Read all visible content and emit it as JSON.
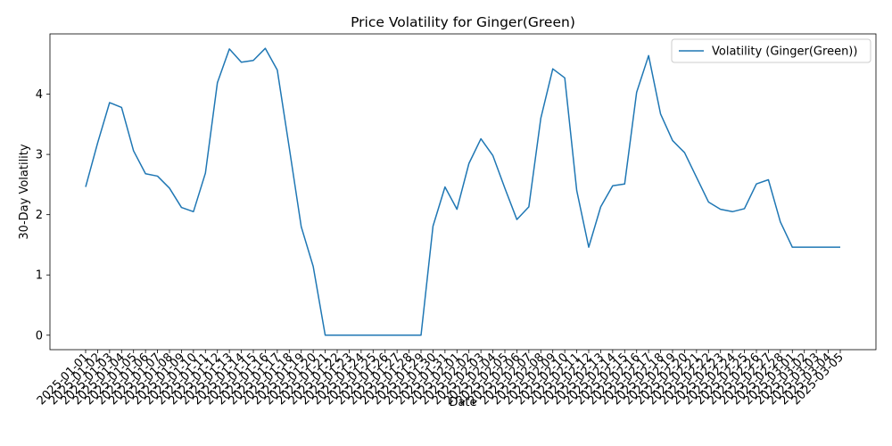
{
  "chart_data": {
    "type": "line",
    "title": "Price Volatility for Ginger(Green)",
    "xlabel": "Date",
    "ylabel": "30-Day Volatility",
    "x": [
      "2025-01-01",
      "2025-01-02",
      "2025-01-03",
      "2025-01-04",
      "2025-01-05",
      "2025-01-06",
      "2025-01-07",
      "2025-01-08",
      "2025-01-09",
      "2025-01-10",
      "2025-01-11",
      "2025-01-12",
      "2025-01-13",
      "2025-01-14",
      "2025-01-15",
      "2025-01-16",
      "2025-01-17",
      "2025-01-18",
      "2025-01-19",
      "2025-01-20",
      "2025-01-21",
      "2025-01-22",
      "2025-01-23",
      "2025-01-24",
      "2025-01-25",
      "2025-01-26",
      "2025-01-27",
      "2025-01-28",
      "2025-01-29",
      "2025-01-30",
      "2025-01-31",
      "2025-02-01",
      "2025-02-02",
      "2025-02-03",
      "2025-02-04",
      "2025-02-05",
      "2025-02-06",
      "2025-02-07",
      "2025-02-08",
      "2025-02-09",
      "2025-02-10",
      "2025-02-11",
      "2025-02-12",
      "2025-02-13",
      "2025-02-14",
      "2025-02-15",
      "2025-02-16",
      "2025-02-17",
      "2025-02-18",
      "2025-02-19",
      "2025-02-20",
      "2025-02-21",
      "2025-02-22",
      "2025-02-23",
      "2025-02-24",
      "2025-02-25",
      "2025-02-26",
      "2025-02-27",
      "2025-02-28",
      "2025-03-01",
      "2025-03-02",
      "2025-03-03",
      "2025-03-04",
      "2025-03-05"
    ],
    "series": [
      {
        "name": "Volatility (Ginger(Green))",
        "color": "#1f77b4",
        "values": [
          2.46,
          3.19,
          3.86,
          3.78,
          3.06,
          2.68,
          2.64,
          2.44,
          2.12,
          2.05,
          2.69,
          4.19,
          4.75,
          4.53,
          4.56,
          4.76,
          4.4,
          3.11,
          1.8,
          1.14,
          0,
          0,
          0,
          0,
          0,
          0,
          0,
          0,
          0,
          1.81,
          2.46,
          2.09,
          2.85,
          3.26,
          2.98,
          2.44,
          1.92,
          2.13,
          3.6,
          4.42,
          4.27,
          2.4,
          1.46,
          2.13,
          2.48,
          2.51,
          4.03,
          4.64,
          3.67,
          3.23,
          3.03,
          2.62,
          2.21,
          2.09,
          2.05,
          2.1,
          2.51,
          2.58,
          1.88,
          1.46,
          1.46,
          1.46,
          1.46,
          1.46
        ]
      }
    ],
    "yticks": [
      0,
      1,
      2,
      3,
      4
    ],
    "ylim": [
      -0.24,
      5.0
    ],
    "grid": false,
    "legend_position": "top-right"
  }
}
